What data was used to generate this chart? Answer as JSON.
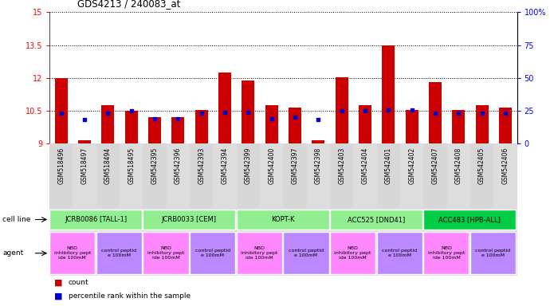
{
  "title": "GDS4213 / 240083_at",
  "samples": [
    "GSM518496",
    "GSM518497",
    "GSM518494",
    "GSM518495",
    "GSM542395",
    "GSM542396",
    "GSM542393",
    "GSM542394",
    "GSM542399",
    "GSM542400",
    "GSM542397",
    "GSM542398",
    "GSM542403",
    "GSM542404",
    "GSM542401",
    "GSM542402",
    "GSM542407",
    "GSM542408",
    "GSM542405",
    "GSM542406"
  ],
  "count_values": [
    12.0,
    9.15,
    10.75,
    10.5,
    10.2,
    10.2,
    10.55,
    12.25,
    11.9,
    10.75,
    10.65,
    9.15,
    12.05,
    10.75,
    13.5,
    10.55,
    11.8,
    10.55,
    10.75,
    10.65
  ],
  "percentile_values": [
    10.4,
    10.1,
    10.4,
    10.5,
    10.15,
    10.15,
    10.4,
    10.45,
    10.45,
    10.15,
    10.2,
    10.1,
    10.5,
    10.5,
    10.55,
    10.55,
    10.4,
    10.4,
    10.4,
    10.4
  ],
  "ylim_left": [
    9,
    15
  ],
  "ylim_right": [
    0,
    100
  ],
  "yticks_left": [
    9,
    10.5,
    12,
    13.5,
    15
  ],
  "yticks_right": [
    0,
    25,
    50,
    75,
    100
  ],
  "cell_lines": [
    {
      "label": "JCRB0086 [TALL-1]",
      "start": 0,
      "end": 4,
      "color": "#90EE90"
    },
    {
      "label": "JCRB0033 [CEM]",
      "start": 4,
      "end": 8,
      "color": "#90EE90"
    },
    {
      "label": "KOPT-K",
      "start": 8,
      "end": 12,
      "color": "#90EE90"
    },
    {
      "label": "ACC525 [DND41]",
      "start": 12,
      "end": 16,
      "color": "#90EE90"
    },
    {
      "label": "ACC483 [HPB-ALL]",
      "start": 16,
      "end": 20,
      "color": "#00CC44"
    }
  ],
  "agents": [
    {
      "label": "NBD\ninhibitory pept\nide 100mM",
      "start": 0,
      "end": 2,
      "color": "#FF88FF"
    },
    {
      "label": "control peptid\ne 100mM",
      "start": 2,
      "end": 4,
      "color": "#BB88FF"
    },
    {
      "label": "NBD\ninhibitory pept\nide 100mM",
      "start": 4,
      "end": 6,
      "color": "#FF88FF"
    },
    {
      "label": "control peptid\ne 100mM",
      "start": 6,
      "end": 8,
      "color": "#BB88FF"
    },
    {
      "label": "NBD\ninhibitory pept\nide 100mM",
      "start": 8,
      "end": 10,
      "color": "#FF88FF"
    },
    {
      "label": "control peptid\ne 100mM",
      "start": 10,
      "end": 12,
      "color": "#BB88FF"
    },
    {
      "label": "NBD\ninhibitory pept\nide 100mM",
      "start": 12,
      "end": 14,
      "color": "#FF88FF"
    },
    {
      "label": "control peptid\ne 100mM",
      "start": 14,
      "end": 16,
      "color": "#BB88FF"
    },
    {
      "label": "NBD\ninhibitory pept\nide 100mM",
      "start": 16,
      "end": 18,
      "color": "#FF88FF"
    },
    {
      "label": "control peptid\ne 100mM",
      "start": 18,
      "end": 20,
      "color": "#BB88FF"
    }
  ],
  "bar_color": "#CC0000",
  "percentile_color": "#0000CC",
  "background_color": "#FFFFFF",
  "bar_bottom": 9.0,
  "bar_width": 0.55,
  "cell_line_row_label": "cell line",
  "agent_row_label": "agent",
  "legend_count": "count",
  "legend_pct": "percentile rank within the sample"
}
